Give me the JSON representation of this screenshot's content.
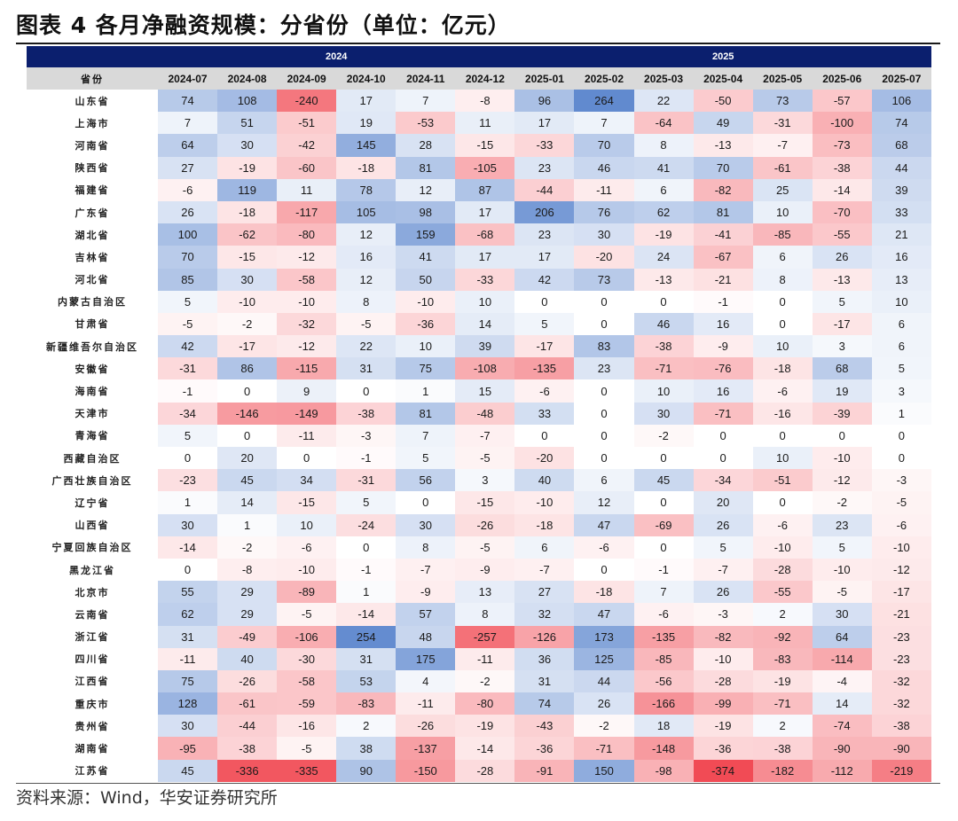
{
  "title": "图表 4 各月净融资规模：分省份（单位：亿元）",
  "source": "资料来源：Wind，华安证券研究所",
  "colors": {
    "header_bg": "#0b1f6e",
    "subheader_bg": "#d9d9d9",
    "positive": "#2e64c0",
    "negative": "#f0404a"
  },
  "chart_data": {
    "type": "table",
    "subtype": "heatmap-table",
    "year_groups": [
      {
        "label": "2024",
        "span": 6
      },
      {
        "label": "2025",
        "span": 7
      }
    ],
    "row_header": "省份",
    "columns": [
      "2024-07",
      "2024-08",
      "2024-09",
      "2024-10",
      "2024-11",
      "2024-12",
      "2025-01",
      "2025-02",
      "2025-03",
      "2025-04",
      "2025-05",
      "2025-06",
      "2025-07"
    ],
    "rows": [
      {
        "province": "山东省",
        "values": [
          74,
          108,
          -240,
          17,
          7,
          -8,
          96,
          264,
          22,
          -50,
          73,
          -57,
          106
        ]
      },
      {
        "province": "上海市",
        "values": [
          7,
          51,
          -51,
          19,
          -53,
          11,
          17,
          7,
          -64,
          49,
          -31,
          -100,
          74
        ]
      },
      {
        "province": "河南省",
        "values": [
          64,
          30,
          -42,
          145,
          28,
          -15,
          -33,
          70,
          8,
          -13,
          -7,
          -73,
          68
        ]
      },
      {
        "province": "陕西省",
        "values": [
          27,
          -19,
          -60,
          -18,
          81,
          -105,
          23,
          46,
          41,
          70,
          -61,
          -38,
          44
        ]
      },
      {
        "province": "福建省",
        "values": [
          -6,
          119,
          11,
          78,
          12,
          87,
          -44,
          -11,
          6,
          -82,
          25,
          -14,
          39
        ]
      },
      {
        "province": "广东省",
        "values": [
          26,
          -18,
          -117,
          105,
          98,
          17,
          206,
          76,
          62,
          81,
          10,
          -70,
          33
        ]
      },
      {
        "province": "湖北省",
        "values": [
          100,
          -62,
          -80,
          12,
          159,
          -68,
          23,
          30,
          -19,
          -41,
          -85,
          -55,
          21
        ]
      },
      {
        "province": "吉林省",
        "values": [
          70,
          -15,
          -12,
          16,
          41,
          17,
          17,
          -20,
          24,
          -67,
          6,
          26,
          16
        ]
      },
      {
        "province": "河北省",
        "values": [
          85,
          30,
          -58,
          12,
          50,
          -33,
          42,
          73,
          -13,
          -21,
          8,
          -13,
          13
        ]
      },
      {
        "province": "内蒙古自治区",
        "values": [
          5,
          -10,
          -10,
          8,
          -10,
          10,
          0,
          0,
          0,
          -1,
          0,
          5,
          10
        ]
      },
      {
        "province": "甘肃省",
        "values": [
          -5,
          -2,
          -32,
          -5,
          -36,
          14,
          5,
          0,
          46,
          16,
          0,
          -17,
          6
        ]
      },
      {
        "province": "新疆维吾尔自治区",
        "values": [
          42,
          -17,
          -12,
          22,
          10,
          39,
          -17,
          83,
          -38,
          -9,
          10,
          3,
          6
        ]
      },
      {
        "province": "安徽省",
        "values": [
          -31,
          86,
          -115,
          31,
          75,
          -108,
          -135,
          23,
          -71,
          -76,
          -18,
          68,
          5
        ]
      },
      {
        "province": "海南省",
        "values": [
          -1,
          0,
          9,
          0,
          1,
          15,
          -6,
          0,
          10,
          16,
          -6,
          19,
          3
        ]
      },
      {
        "province": "天津市",
        "values": [
          -34,
          -146,
          -149,
          -38,
          81,
          -48,
          33,
          0,
          30,
          -71,
          -16,
          -39,
          1
        ]
      },
      {
        "province": "青海省",
        "values": [
          5,
          0,
          -11,
          -3,
          7,
          -7,
          0,
          0,
          -2,
          0,
          0,
          0,
          0
        ]
      },
      {
        "province": "西藏自治区",
        "values": [
          0,
          20,
          0,
          -1,
          5,
          -5,
          -20,
          0,
          0,
          0,
          10,
          -10,
          0
        ]
      },
      {
        "province": "广西壮族自治区",
        "values": [
          -23,
          45,
          34,
          -31,
          56,
          3,
          40,
          6,
          45,
          -34,
          -51,
          -12,
          -3
        ]
      },
      {
        "province": "辽宁省",
        "values": [
          1,
          14,
          -15,
          5,
          0,
          -15,
          -10,
          12,
          0,
          20,
          0,
          -2,
          -5
        ]
      },
      {
        "province": "山西省",
        "values": [
          30,
          1,
          10,
          -24,
          30,
          -26,
          -18,
          47,
          -69,
          26,
          -6,
          23,
          -6
        ]
      },
      {
        "province": "宁夏回族自治区",
        "values": [
          -14,
          -2,
          -6,
          0,
          8,
          -5,
          6,
          -6,
          0,
          5,
          -10,
          5,
          -10
        ]
      },
      {
        "province": "黑龙江省",
        "values": [
          0,
          -8,
          -10,
          -1,
          -7,
          -9,
          -7,
          0,
          -1,
          -7,
          -28,
          -10,
          -12
        ]
      },
      {
        "province": "北京市",
        "values": [
          55,
          29,
          -89,
          1,
          -9,
          13,
          27,
          -18,
          7,
          26,
          -55,
          -5,
          -17
        ]
      },
      {
        "province": "云南省",
        "values": [
          62,
          29,
          -5,
          -14,
          57,
          8,
          32,
          47,
          -6,
          -3,
          2,
          30,
          -21
        ]
      },
      {
        "province": "浙江省",
        "values": [
          31,
          -49,
          -106,
          254,
          48,
          -257,
          -126,
          173,
          -135,
          -82,
          -92,
          64,
          -23
        ]
      },
      {
        "province": "四川省",
        "values": [
          -11,
          40,
          -30,
          31,
          175,
          -11,
          36,
          125,
          -85,
          -10,
          -83,
          -114,
          -23
        ]
      },
      {
        "province": "江西省",
        "values": [
          75,
          -26,
          -58,
          53,
          4,
          -2,
          31,
          44,
          -56,
          -28,
          -19,
          -4,
          -32
        ]
      },
      {
        "province": "重庆市",
        "values": [
          128,
          -61,
          -59,
          -83,
          -11,
          -80,
          74,
          26,
          -166,
          -99,
          -71,
          14,
          -32
        ]
      },
      {
        "province": "贵州省",
        "values": [
          30,
          -44,
          -16,
          2,
          -26,
          -19,
          -43,
          -2,
          18,
          -19,
          2,
          -74,
          -38
        ]
      },
      {
        "province": "湖南省",
        "values": [
          -95,
          -38,
          -5,
          38,
          -137,
          -14,
          -36,
          -71,
          -148,
          -36,
          -38,
          -90,
          -90
        ]
      },
      {
        "province": "江苏省",
        "values": [
          45,
          -336,
          -335,
          90,
          -150,
          -28,
          -91,
          150,
          -98,
          -374,
          -182,
          -112,
          -219
        ]
      }
    ]
  }
}
